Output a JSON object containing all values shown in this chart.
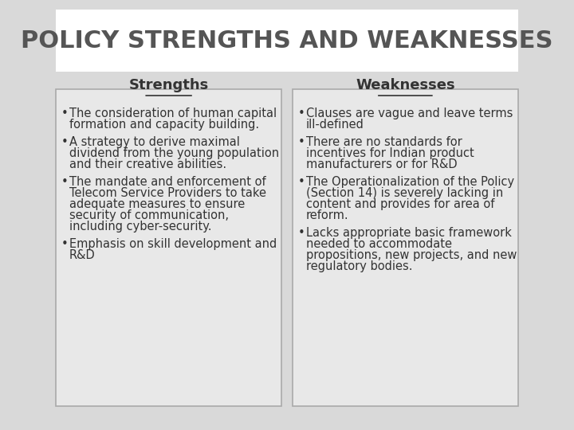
{
  "title": "POLICY STRENGTHS AND WEAKNESSES",
  "title_fontsize": 22,
  "title_color": "#555555",
  "background_color": "#d9d9d9",
  "header_box_color": "#ffffff",
  "content_box_color": "#e8e8e8",
  "strengths_header": "Strengths",
  "weaknesses_header": "Weaknesses",
  "header_fontsize": 13,
  "header_color": "#333333",
  "bullet_fontsize": 10.5,
  "bullet_color": "#333333",
  "strengths_bullets": [
    "The consideration of human capital\nformation and capacity building.",
    "A strategy to derive maximal\ndividend from the young population\nand their creative abilities.",
    "The mandate and enforcement of\nTelecom Service Providers to take\nadequate measures to ensure\nsecurity of communication,\nincluding cyber-security.",
    "Emphasis on skill development and\nR&D"
  ],
  "weaknesses_bullets": [
    "Clauses are vague and leave terms\nill-defined",
    "There are no standards for\nincentives for Indian product\nmanufacturers or for R&D",
    "The Operationalization of the Policy\n(Section 14) is severely lacking in\ncontent and provides for area of\nreform.",
    "Lacks appropriate basic framework\nneeded to accommodate\npropositions, new projects, and new\nregulatory bodies."
  ]
}
